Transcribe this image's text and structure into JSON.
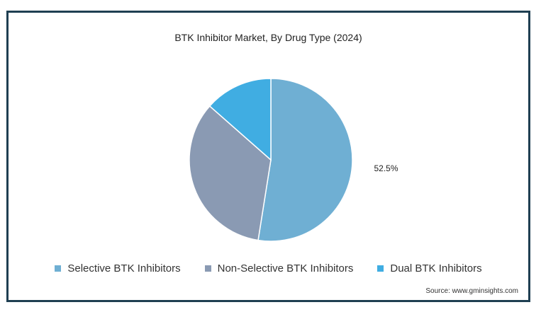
{
  "chart_data": {
    "type": "pie",
    "title": "BTK Inhibitor Market, By Drug Type (2024)",
    "slices": [
      {
        "name": "Selective BTK Inhibitors",
        "value": 52.5,
        "color": "#6fafd3",
        "label": "52.5%"
      },
      {
        "name": "Non-Selective BTK Inhibitors",
        "value": 34.0,
        "color": "#8a9ab3",
        "label": ""
      },
      {
        "name": "Dual BTK Inhibitors",
        "value": 13.5,
        "color": "#40ade2",
        "label": ""
      }
    ],
    "start_angle_deg": 0,
    "direction": "clockwise",
    "legend_position": "bottom"
  },
  "source": "Source: www.gminsights.com"
}
